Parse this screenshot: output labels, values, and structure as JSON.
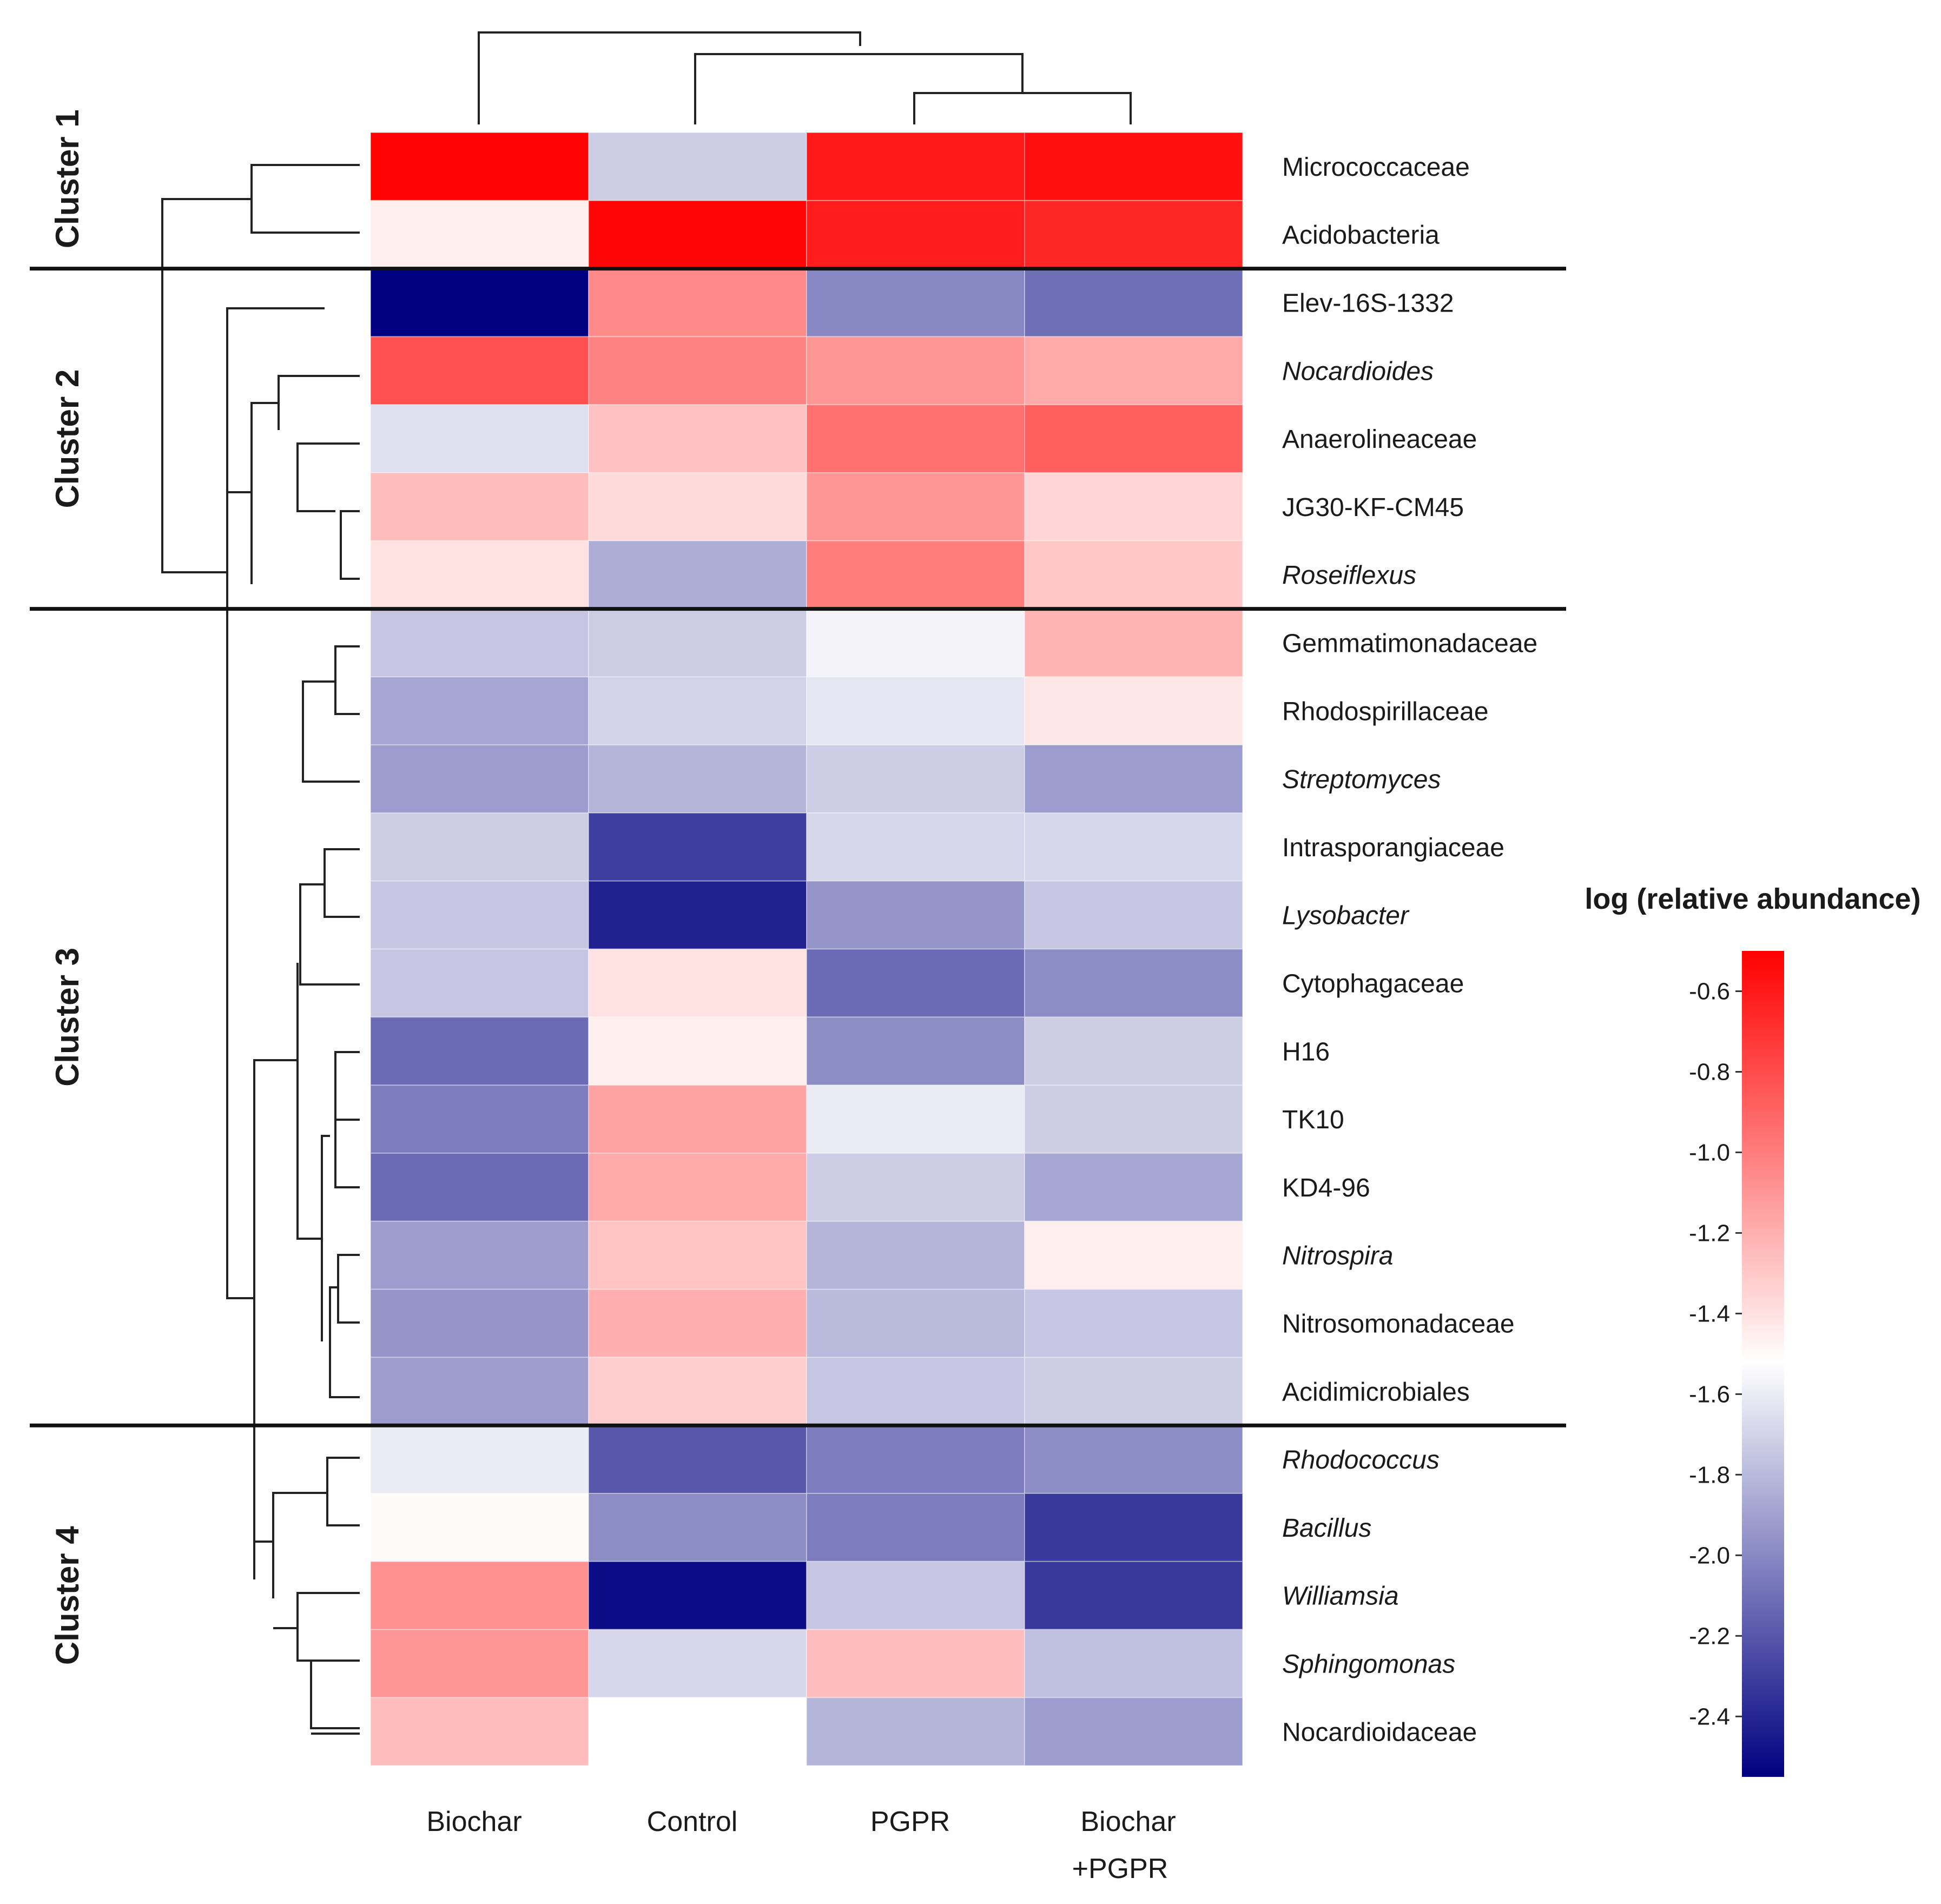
{
  "chart_data": {
    "type": "heatmap",
    "title": "",
    "columns": [
      "Biochar",
      "Control",
      "PGPR",
      "Biochar +PGPR"
    ],
    "column_labels": [
      {
        "line1": "Biochar",
        "line2": ""
      },
      {
        "line1": "Control",
        "line2": ""
      },
      {
        "line1": "PGPR",
        "line2": ""
      },
      {
        "line1": "Biochar",
        "line2": "+PGPR"
      }
    ],
    "rows": [
      {
        "name": "Micrococcaceae",
        "italic": false,
        "values": [
          -0.51,
          -1.72,
          -0.6,
          -0.56
        ]
      },
      {
        "name": "Acidobacteria",
        "italic": false,
        "values": [
          -1.45,
          -0.52,
          -0.61,
          -0.65
        ]
      },
      {
        "name": "Elev-16S-1332",
        "italic": false,
        "values": [
          -2.55,
          -1.05,
          -2.0,
          -2.1
        ]
      },
      {
        "name": "Nocardioides",
        "italic": true,
        "values": [
          -0.82,
          -1.02,
          -1.1,
          -1.18
        ]
      },
      {
        "name": "Anaerolineaceae",
        "italic": false,
        "values": [
          -1.65,
          -1.27,
          -0.95,
          -0.88
        ]
      },
      {
        "name": "JG30-KF-CM45",
        "italic": false,
        "values": [
          -1.25,
          -1.37,
          -1.1,
          -1.35
        ]
      },
      {
        "name": "Roseiflexus",
        "italic": true,
        "values": [
          -1.4,
          -1.85,
          -1.0,
          -1.3
        ]
      },
      {
        "name": "Gemmatimonadaceae",
        "italic": false,
        "values": [
          -1.75,
          -1.72,
          -1.57,
          -1.22
        ]
      },
      {
        "name": "Rhodospirillaceae",
        "italic": false,
        "values": [
          -1.88,
          -1.7,
          -1.62,
          -1.42
        ]
      },
      {
        "name": "Streptomyces",
        "italic": true,
        "values": [
          -1.92,
          -1.82,
          -1.72,
          -1.92
        ]
      },
      {
        "name": "Intrasporangiaceae",
        "italic": false,
        "values": [
          -1.72,
          -2.3,
          -1.68,
          -1.68
        ]
      },
      {
        "name": "Lysobacter",
        "italic": true,
        "values": [
          -1.75,
          -2.42,
          -1.95,
          -1.75
        ]
      },
      {
        "name": "Cytophagaceae",
        "italic": false,
        "values": [
          -1.75,
          -1.4,
          -2.12,
          -1.98
        ]
      },
      {
        "name": "H16",
        "italic": false,
        "values": [
          -2.12,
          -1.45,
          -1.98,
          -1.72
        ]
      },
      {
        "name": "TK10",
        "italic": false,
        "values": [
          -2.05,
          -1.15,
          -1.6,
          -1.72
        ]
      },
      {
        "name": "KD4-96",
        "italic": false,
        "values": [
          -2.12,
          -1.18,
          -1.72,
          -1.88
        ]
      },
      {
        "name": "Nitrospira",
        "italic": true,
        "values": [
          -1.92,
          -1.28,
          -1.82,
          -1.45
        ]
      },
      {
        "name": "Nitrosomonadaceae",
        "italic": false,
        "values": [
          -1.95,
          -1.2,
          -1.8,
          -1.75
        ]
      },
      {
        "name": "Acidimicrobiales",
        "italic": false,
        "values": [
          -1.92,
          -1.32,
          -1.75,
          -1.72
        ]
      },
      {
        "name": "Rhodococcus",
        "italic": true,
        "values": [
          -1.6,
          -2.2,
          -2.05,
          -1.98
        ]
      },
      {
        "name": "Bacillus",
        "italic": true,
        "values": [
          -1.5,
          -1.98,
          -2.05,
          -2.32
        ]
      },
      {
        "name": "Williamsia",
        "italic": true,
        "values": [
          -1.08,
          -2.5,
          -1.75,
          -2.32
        ]
      },
      {
        "name": "Sphingomonas",
        "italic": true,
        "values": [
          -1.1,
          -1.68,
          -1.25,
          -1.78
        ]
      },
      {
        "name": "Nocardioidaceae",
        "italic": false,
        "values": [
          -1.25,
          -1.52,
          -1.82,
          -1.92
        ]
      }
    ],
    "clusters": [
      {
        "label": "Cluster 1",
        "rows": [
          0,
          1
        ]
      },
      {
        "label": "Cluster 2",
        "rows": [
          2,
          6
        ]
      },
      {
        "label": "Cluster 3",
        "rows": [
          7,
          18
        ]
      },
      {
        "label": "Cluster 4",
        "rows": [
          19,
          23
        ]
      }
    ],
    "colorbar": {
      "title": "log (relative abundance)",
      "min": -2.55,
      "max": -0.5,
      "mid": -1.52,
      "colors": {
        "low": "#000080",
        "mid": "#ffffff",
        "high": "#ff0000"
      },
      "ticks": [
        -0.6,
        -0.8,
        -1.0,
        -1.2,
        -1.4,
        -1.6,
        -1.8,
        -2.0,
        -2.2,
        -2.4
      ],
      "tick_labels": [
        "-0.6",
        "-0.8",
        "-1.0",
        "-1.2",
        "-1.4",
        "-1.6",
        "-1.8",
        "-2.0",
        "-2.2",
        "-2.4"
      ]
    }
  }
}
